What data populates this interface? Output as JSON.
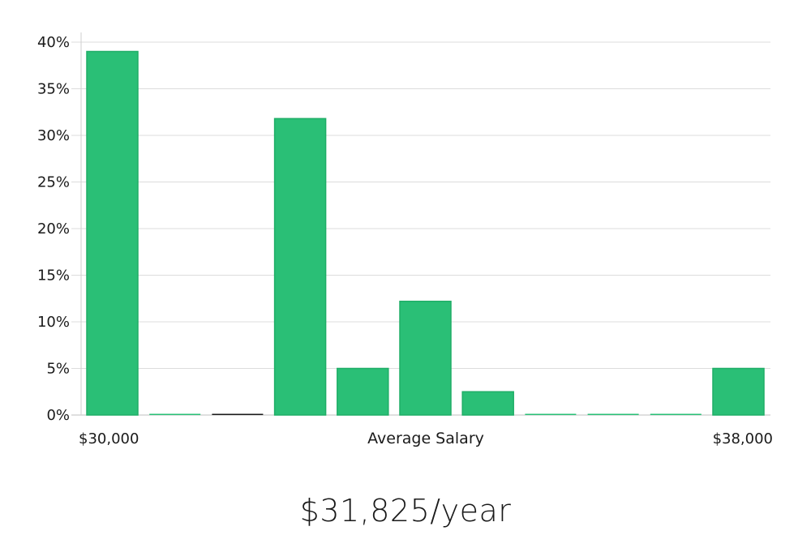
{
  "chart_data": {
    "type": "bar",
    "title": "",
    "xlabel": "Average Salary",
    "ylabel": "",
    "x_range_labels": [
      "$30,000",
      "$38,000"
    ],
    "values": [
      39,
      0,
      0,
      31.8,
      5,
      12.2,
      2.5,
      0,
      0,
      0,
      5
    ],
    "ylim": [
      0,
      40
    ],
    "yticks": [
      0,
      5,
      10,
      15,
      20,
      25,
      30,
      35,
      40
    ],
    "ytick_suffix": "%",
    "grid": true,
    "bar_color": "#2abf76",
    "bar_edge_color": "#1fae67",
    "zero_bar_colors": [
      "#2abf76",
      "#2abf76",
      "#1a1a1a",
      "#2abf76",
      "#2abf76",
      "#2abf76",
      "#2abf76",
      "#2abf76",
      "#2abf76",
      "#2abf76",
      "#2abf76"
    ]
  },
  "summary": {
    "salary_text": "$31,825/year"
  }
}
